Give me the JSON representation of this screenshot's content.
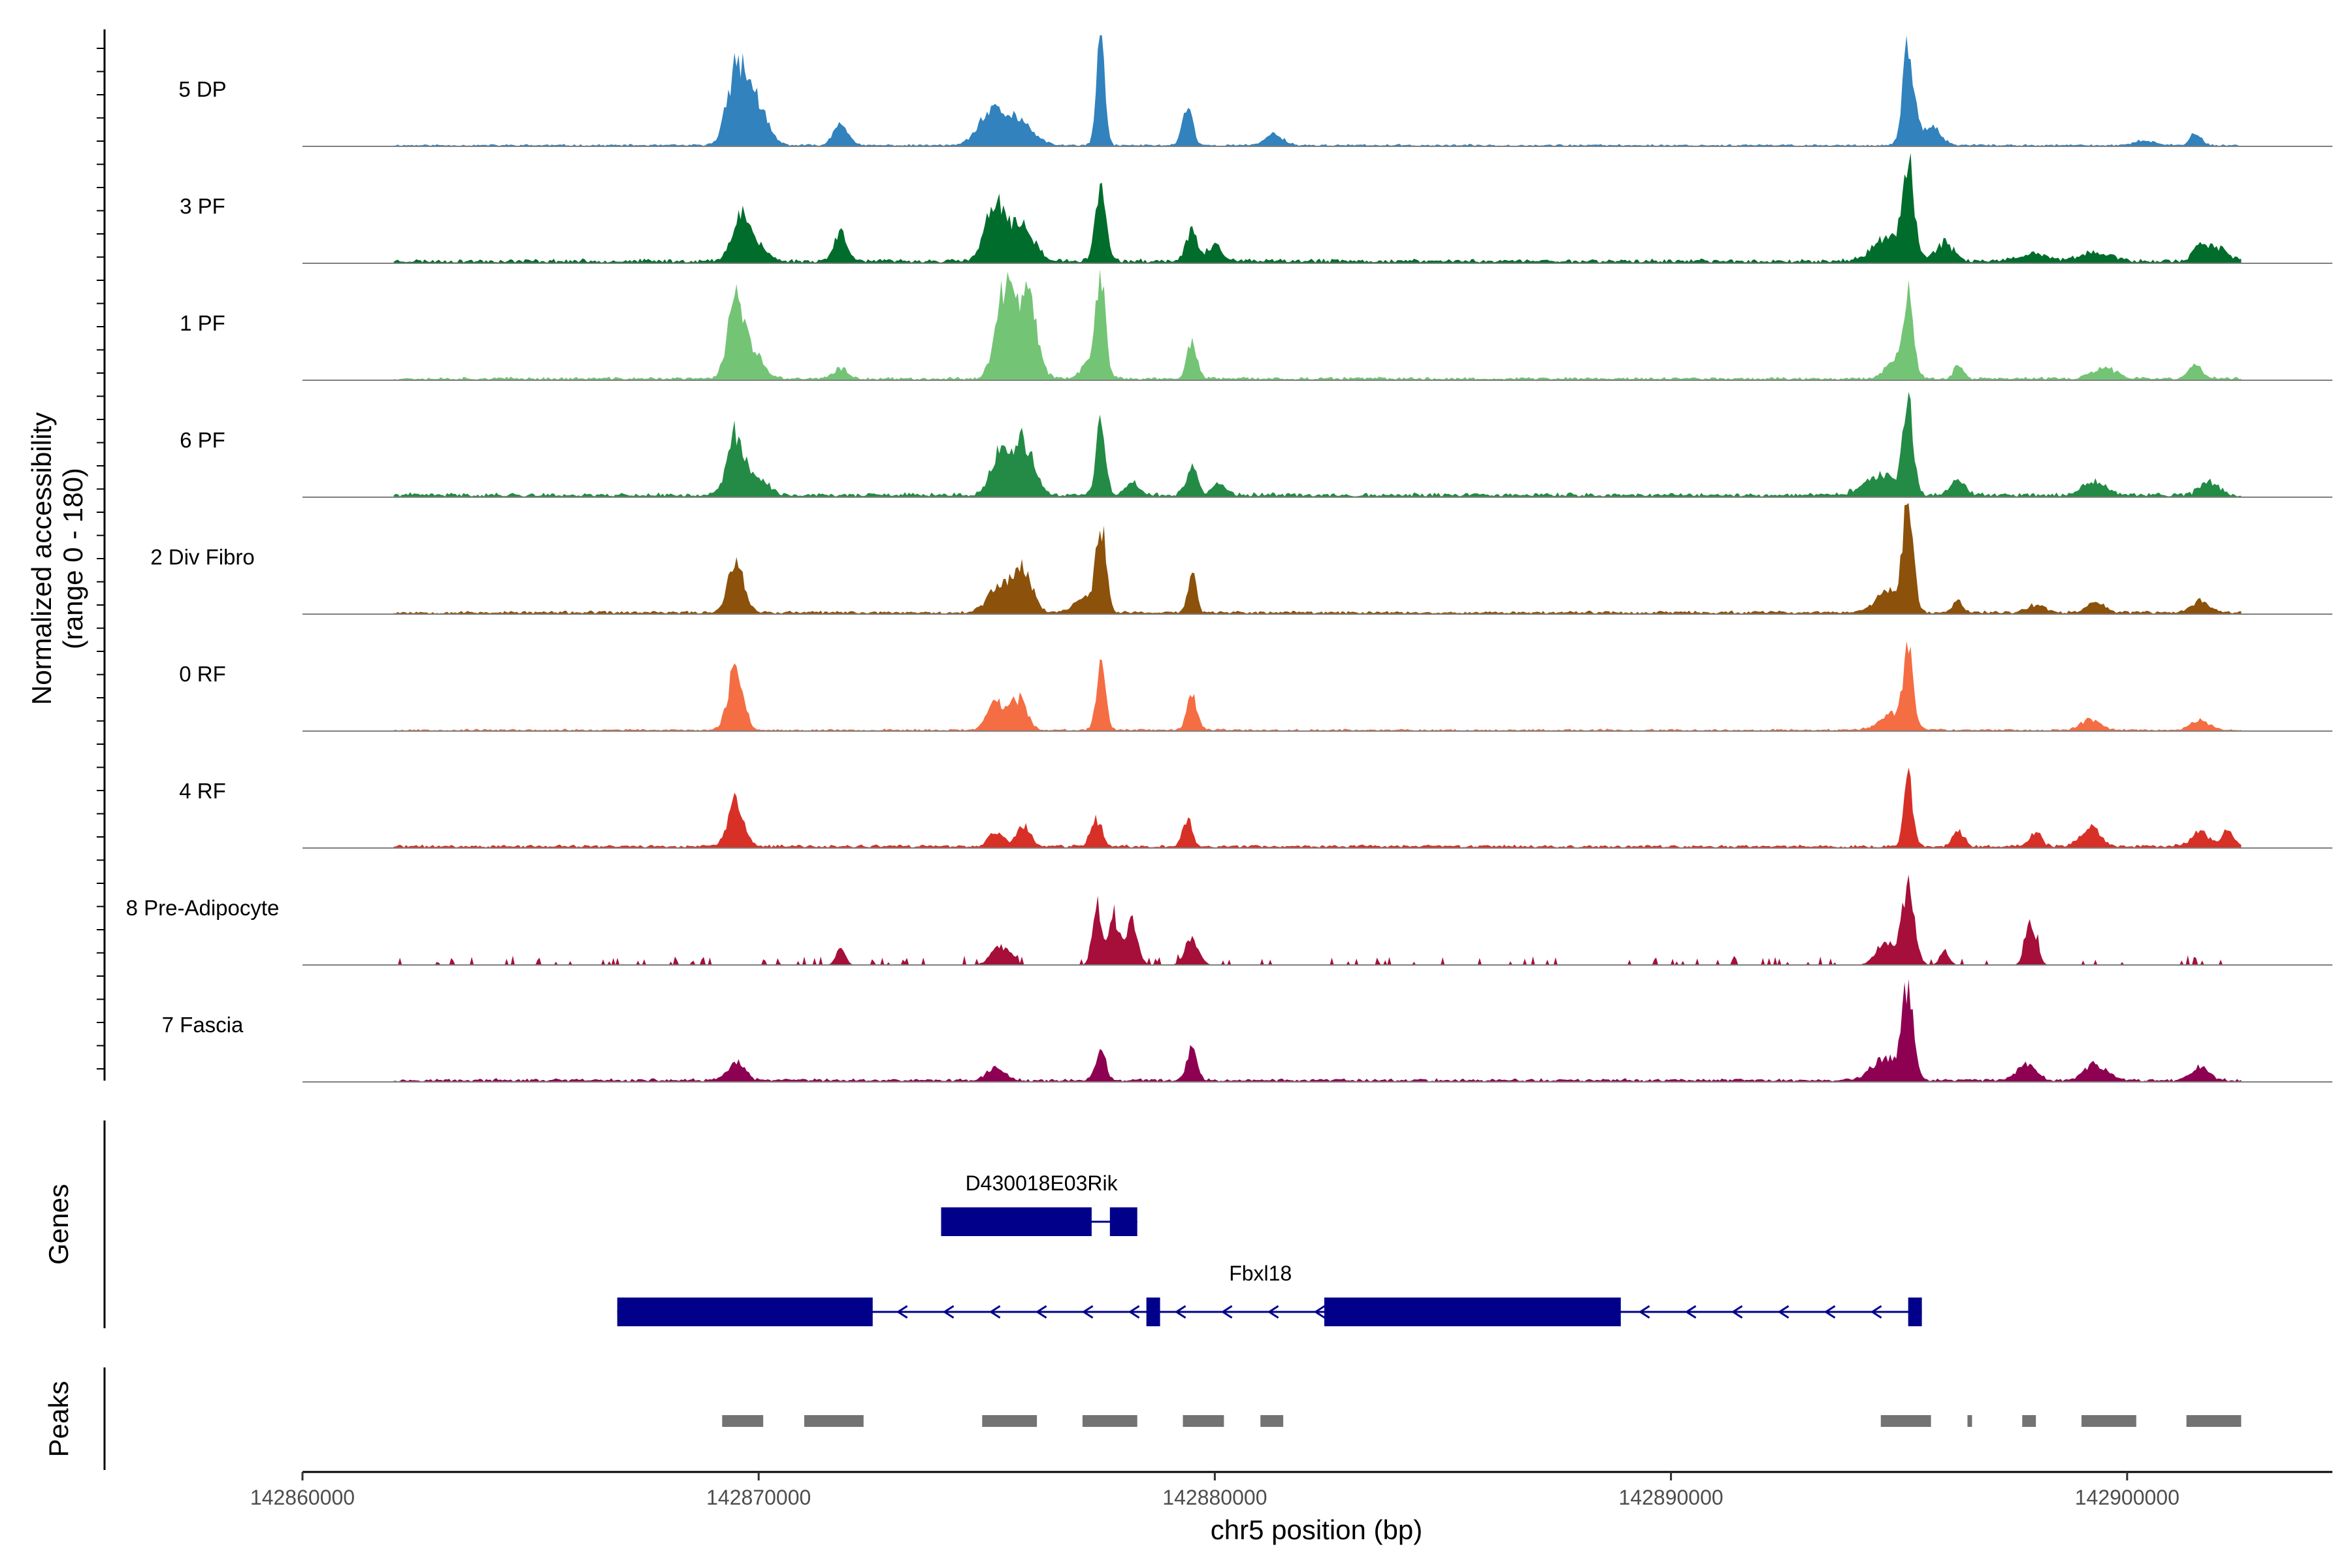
{
  "chart_data": {
    "type": "area",
    "title": "",
    "xlabel": "chr5 position (bp)",
    "ylabel_line1": "Normalized accessibility",
    "ylabel_line2": "(range 0 - 180)",
    "y_range": [
      0,
      180
    ],
    "x_range": [
      142860000,
      142904500
    ],
    "data_extent": [
      142862000,
      142902500
    ],
    "x_ticks": [
      142860000,
      142870000,
      142880000,
      142890000,
      142900000
    ],
    "x_tick_labels": [
      "142860000",
      "142870000",
      "142880000",
      "142890000",
      "142900000"
    ],
    "noise_range": [
      142862000,
      142902500
    ],
    "series": [
      {
        "name": "5 DP",
        "color": "#3182BD",
        "baseline": 2,
        "seed": 11,
        "peaks": [
          [
            142869500,
            110,
            200
          ],
          [
            142869900,
            75,
            250
          ],
          [
            142871800,
            40,
            150
          ],
          [
            142875100,
            50,
            280
          ],
          [
            142875700,
            40,
            300
          ],
          [
            142877500,
            180,
            90
          ],
          [
            142879400,
            65,
            110
          ],
          [
            142881300,
            18,
            200
          ],
          [
            142895200,
            160,
            120
          ],
          [
            142895700,
            32,
            200
          ],
          [
            142900400,
            8,
            200
          ],
          [
            142901500,
            22,
            120
          ]
        ]
      },
      {
        "name": "3 PF",
        "color": "#006D2C",
        "baseline": 4,
        "seed": 23,
        "peaks": [
          [
            142869600,
            80,
            180
          ],
          [
            142870000,
            22,
            200
          ],
          [
            142871800,
            45,
            150
          ],
          [
            142875200,
            95,
            220
          ],
          [
            142875800,
            55,
            250
          ],
          [
            142877500,
            135,
            110
          ],
          [
            142879500,
            48,
            130
          ],
          [
            142880000,
            25,
            160
          ],
          [
            142895200,
            150,
            120
          ],
          [
            142894800,
            38,
            350
          ],
          [
            142896000,
            30,
            200
          ],
          [
            142898000,
            12,
            300
          ],
          [
            142899300,
            15,
            300
          ],
          [
            142901600,
            28,
            150
          ],
          [
            142902000,
            22,
            200
          ]
        ]
      },
      {
        "name": "1 PF",
        "color": "#74C476",
        "baseline": 3,
        "seed": 37,
        "peaks": [
          [
            142869500,
            130,
            170
          ],
          [
            142869900,
            40,
            200
          ],
          [
            142871800,
            16,
            150
          ],
          [
            142875400,
            145,
            200
          ],
          [
            142875900,
            125,
            200
          ],
          [
            142877500,
            150,
            100
          ],
          [
            142877300,
            30,
            200
          ],
          [
            142879500,
            60,
            110
          ],
          [
            142895200,
            115,
            110
          ],
          [
            142895000,
            35,
            250
          ],
          [
            142896300,
            22,
            100
          ],
          [
            142899500,
            18,
            250
          ],
          [
            142901500,
            22,
            150
          ]
        ]
      },
      {
        "name": "6 PF",
        "color": "#238B45",
        "baseline": 4,
        "seed": 41,
        "peaks": [
          [
            142869500,
            100,
            180
          ],
          [
            142870000,
            30,
            200
          ],
          [
            142875300,
            70,
            200
          ],
          [
            142875800,
            85,
            220
          ],
          [
            142877500,
            120,
            100
          ],
          [
            142879500,
            50,
            120
          ],
          [
            142880100,
            18,
            150
          ],
          [
            142878200,
            18,
            150
          ],
          [
            142895200,
            155,
            110
          ],
          [
            142894600,
            32,
            350
          ],
          [
            142896300,
            22,
            150
          ],
          [
            142899300,
            22,
            250
          ],
          [
            142901800,
            22,
            200
          ]
        ]
      },
      {
        "name": "2 Div Fibro",
        "color": "#8C510A",
        "baseline": 3,
        "seed": 53,
        "peaks": [
          [
            142869500,
            85,
            170
          ],
          [
            142875300,
            45,
            250
          ],
          [
            142875800,
            68,
            200
          ],
          [
            142877500,
            145,
            110
          ],
          [
            142877100,
            25,
            200
          ],
          [
            142879500,
            65,
            90
          ],
          [
            142895200,
            170,
            110
          ],
          [
            142894800,
            35,
            300
          ],
          [
            142896300,
            20,
            100
          ],
          [
            142898000,
            12,
            200
          ],
          [
            142899300,
            16,
            200
          ],
          [
            142901600,
            18,
            200
          ]
        ]
      },
      {
        "name": "0 RF",
        "color": "#F46D43",
        "baseline": 2,
        "seed": 67,
        "peaks": [
          [
            142869500,
            108,
            160
          ],
          [
            142875200,
            45,
            180
          ],
          [
            142875700,
            50,
            180
          ],
          [
            142877500,
            105,
            100
          ],
          [
            142879500,
            55,
            110
          ],
          [
            142895200,
            125,
            100
          ],
          [
            142894900,
            28,
            300
          ],
          [
            142899200,
            18,
            200
          ],
          [
            142901600,
            16,
            200
          ]
        ]
      },
      {
        "name": "4 RF",
        "color": "#D73027",
        "baseline": 3,
        "seed": 71,
        "peaks": [
          [
            142869500,
            75,
            170
          ],
          [
            142875200,
            25,
            150
          ],
          [
            142875800,
            35,
            150
          ],
          [
            142877400,
            45,
            120
          ],
          [
            142879400,
            45,
            100
          ],
          [
            142895200,
            110,
            100
          ],
          [
            142896300,
            25,
            120
          ],
          [
            142898000,
            25,
            120
          ],
          [
            142899200,
            30,
            200
          ],
          [
            142901600,
            22,
            200
          ],
          [
            142902200,
            22,
            150
          ]
        ]
      },
      {
        "name": "8 Pre-Adipocyte",
        "color": "#A50F39",
        "baseline": 0,
        "seed": 83,
        "sparse": true,
        "peaks": [
          [
            142877400,
            100,
            90
          ],
          [
            142877800,
            70,
            150
          ],
          [
            142878200,
            70,
            120
          ],
          [
            142879500,
            40,
            150
          ],
          [
            142895200,
            130,
            140
          ],
          [
            142894700,
            38,
            200
          ],
          [
            142897900,
            70,
            120
          ],
          [
            142896000,
            25,
            100
          ],
          [
            142875300,
            30,
            200
          ],
          [
            142871800,
            30,
            100
          ]
        ]
      },
      {
        "name": "7 Fascia",
        "color": "#8E0152",
        "baseline": 3,
        "seed": 97,
        "peaks": [
          [
            142869500,
            30,
            180
          ],
          [
            142877500,
            50,
            110
          ],
          [
            142879500,
            62,
            100
          ],
          [
            142875200,
            20,
            200
          ],
          [
            142895200,
            150,
            120
          ],
          [
            142894700,
            35,
            300
          ],
          [
            142897800,
            25,
            200
          ],
          [
            142899300,
            25,
            250
          ],
          [
            142901600,
            22,
            200
          ]
        ]
      }
    ],
    "genes_track_label": "Genes",
    "peaks_track_label": "Peaks",
    "genes": [
      {
        "name": "D430018E03Rik",
        "strand": "+",
        "start": 142874000,
        "end": 142878300,
        "exons": [
          [
            142874000,
            142877300
          ],
          [
            142877700,
            142878300
          ]
        ]
      },
      {
        "name": "Fbxl18",
        "strand": "-",
        "start": 142866900,
        "end": 142895500,
        "exons": [
          [
            142866900,
            142872500
          ],
          [
            142878500,
            142878800
          ],
          [
            142882400,
            142888900
          ],
          [
            142895200,
            142895500
          ]
        ]
      }
    ],
    "peaks": [
      [
        142869200,
        142870100
      ],
      [
        142871000,
        142872300
      ],
      [
        142874900,
        142876100
      ],
      [
        142877100,
        142878300
      ],
      [
        142879300,
        142880200
      ],
      [
        142881000,
        142881500
      ],
      [
        142894600,
        142895700
      ],
      [
        142896500,
        142896600
      ],
      [
        142897700,
        142898000
      ],
      [
        142899000,
        142900200
      ],
      [
        142901300,
        142902500
      ]
    ]
  }
}
